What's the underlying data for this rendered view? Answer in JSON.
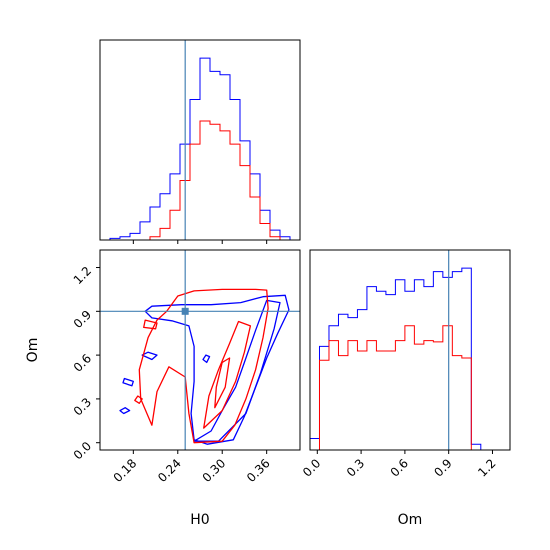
{
  "chart_data": {
    "type": "corner",
    "colors": {
      "series_a": "#0000ff",
      "series_b": "#ff0000",
      "truth": "#4682b4"
    },
    "params": [
      "H0",
      "Om"
    ],
    "truth": {
      "H0": 0.25,
      "Om": 0.9
    },
    "axes": {
      "H0": {
        "range": [
          0.135,
          0.405
        ],
        "ticks": [
          0.18,
          0.24,
          0.3,
          0.36
        ],
        "tick_labels": [
          "0.18",
          "0.24",
          "0.30",
          "0.36"
        ],
        "label": "H0"
      },
      "Om": {
        "range": [
          -0.05,
          1.32
        ],
        "ticks": [
          0.0,
          0.3,
          0.6,
          0.9,
          1.2
        ],
        "tick_labels": [
          "0.0",
          "0.3",
          "0.6",
          "0.9",
          "1.2"
        ],
        "label": "Om"
      }
    },
    "hist_H0": {
      "edges": [
        0.135,
        0.1485,
        0.162,
        0.1755,
        0.189,
        0.2025,
        0.216,
        0.2295,
        0.243,
        0.2565,
        0.27,
        0.2835,
        0.297,
        0.3105,
        0.324,
        0.3375,
        0.351,
        0.3645,
        0.378,
        0.3915,
        0.405
      ],
      "series_a": [
        0,
        1,
        2,
        4,
        11,
        20,
        28,
        40,
        58,
        85,
        110,
        102,
        100,
        85,
        60,
        40,
        18,
        6,
        2,
        0
      ],
      "series_b": [
        0,
        0,
        0,
        0,
        0,
        2,
        7,
        18,
        36,
        58,
        72,
        70,
        66,
        58,
        45,
        26,
        10,
        2,
        0,
        0
      ]
    },
    "hist_Om": {
      "edges": [
        -0.05,
        0.015,
        0.08,
        0.145,
        0.21,
        0.275,
        0.34,
        0.405,
        0.47,
        0.535,
        0.6,
        0.665,
        0.73,
        0.795,
        0.86,
        0.925,
        0.99,
        1.055,
        1.12,
        1.185,
        1.25,
        1.32
      ],
      "series_a": [
        10,
        90,
        108,
        118,
        115,
        122,
        142,
        138,
        135,
        148,
        138,
        148,
        142,
        155,
        150,
        155,
        158,
        5,
        0,
        0,
        0
      ],
      "series_b": [
        0,
        78,
        95,
        82,
        95,
        86,
        95,
        86,
        86,
        95,
        108,
        92,
        95,
        94,
        108,
        82,
        80,
        0,
        0,
        0,
        0
      ]
    },
    "contours": {
      "series_a": [
        [
          [
            0.205,
            0.935
          ],
          [
            0.245,
            0.945
          ],
          [
            0.285,
            0.945
          ],
          [
            0.325,
            0.96
          ],
          [
            0.355,
            1.0
          ],
          [
            0.385,
            1.01
          ],
          [
            0.39,
            0.91
          ],
          [
            0.375,
            0.75
          ],
          [
            0.36,
            0.58
          ],
          [
            0.345,
            0.38
          ],
          [
            0.33,
            0.18
          ],
          [
            0.315,
            0.02
          ],
          [
            0.28,
            -0.01
          ],
          [
            0.262,
            0.02
          ],
          [
            0.258,
            0.2
          ],
          [
            0.262,
            0.42
          ],
          [
            0.262,
            0.66
          ],
          [
            0.255,
            0.8
          ],
          [
            0.232,
            0.835
          ],
          [
            0.205,
            0.855
          ],
          [
            0.196,
            0.9
          ],
          [
            0.205,
            0.935
          ]
        ],
        [
          [
            0.262,
            0.01
          ],
          [
            0.295,
            0.01
          ],
          [
            0.332,
            0.2
          ],
          [
            0.352,
            0.48
          ],
          [
            0.37,
            0.78
          ],
          [
            0.378,
            0.96
          ],
          [
            0.36,
            0.975
          ],
          [
            0.345,
            0.77
          ],
          [
            0.33,
            0.55
          ],
          [
            0.318,
            0.38
          ],
          [
            0.3,
            0.22
          ],
          [
            0.285,
            0.08
          ],
          [
            0.262,
            0.01
          ]
        ],
        [
          [
            0.2,
            0.62
          ],
          [
            0.212,
            0.6
          ],
          [
            0.205,
            0.57
          ],
          [
            0.192,
            0.6
          ],
          [
            0.2,
            0.62
          ]
        ],
        [
          [
            0.168,
            0.44
          ],
          [
            0.18,
            0.42
          ],
          [
            0.178,
            0.39
          ],
          [
            0.166,
            0.41
          ],
          [
            0.168,
            0.44
          ]
        ],
        [
          [
            0.169,
            0.24
          ],
          [
            0.175,
            0.22
          ],
          [
            0.167,
            0.2
          ],
          [
            0.162,
            0.22
          ],
          [
            0.169,
            0.24
          ]
        ],
        [
          [
            0.278,
            0.6
          ],
          [
            0.283,
            0.59
          ],
          [
            0.279,
            0.55
          ],
          [
            0.274,
            0.57
          ],
          [
            0.278,
            0.6
          ]
        ]
      ],
      "series_b": [
        [
          [
            0.24,
            1.005
          ],
          [
            0.262,
            1.04
          ],
          [
            0.3,
            1.05
          ],
          [
            0.345,
            1.05
          ],
          [
            0.36,
            1.045
          ],
          [
            0.362,
            0.92
          ],
          [
            0.355,
            0.72
          ],
          [
            0.345,
            0.5
          ],
          [
            0.332,
            0.3
          ],
          [
            0.317,
            0.12
          ],
          [
            0.3,
            0.01
          ],
          [
            0.262,
            0.0
          ],
          [
            0.255,
            0.2
          ],
          [
            0.25,
            0.45
          ],
          [
            0.228,
            0.52
          ],
          [
            0.212,
            0.35
          ],
          [
            0.205,
            0.12
          ],
          [
            0.19,
            0.3
          ],
          [
            0.188,
            0.5
          ],
          [
            0.2,
            0.72
          ],
          [
            0.212,
            0.84
          ],
          [
            0.225,
            0.9
          ],
          [
            0.24,
            1.005
          ]
        ],
        [
          [
            0.275,
            0.1
          ],
          [
            0.3,
            0.22
          ],
          [
            0.318,
            0.42
          ],
          [
            0.33,
            0.62
          ],
          [
            0.338,
            0.8
          ],
          [
            0.322,
            0.83
          ],
          [
            0.31,
            0.68
          ],
          [
            0.295,
            0.5
          ],
          [
            0.282,
            0.32
          ],
          [
            0.275,
            0.1
          ]
        ],
        [
          [
            0.29,
            0.24
          ],
          [
            0.304,
            0.38
          ],
          [
            0.31,
            0.58
          ],
          [
            0.3,
            0.55
          ],
          [
            0.292,
            0.38
          ],
          [
            0.29,
            0.24
          ]
        ],
        [
          [
            0.196,
            0.84
          ],
          [
            0.212,
            0.82
          ],
          [
            0.21,
            0.78
          ],
          [
            0.194,
            0.79
          ],
          [
            0.196,
            0.84
          ]
        ],
        [
          [
            0.186,
            0.32
          ],
          [
            0.192,
            0.3
          ],
          [
            0.188,
            0.27
          ],
          [
            0.182,
            0.29
          ],
          [
            0.186,
            0.32
          ]
        ]
      ]
    }
  }
}
